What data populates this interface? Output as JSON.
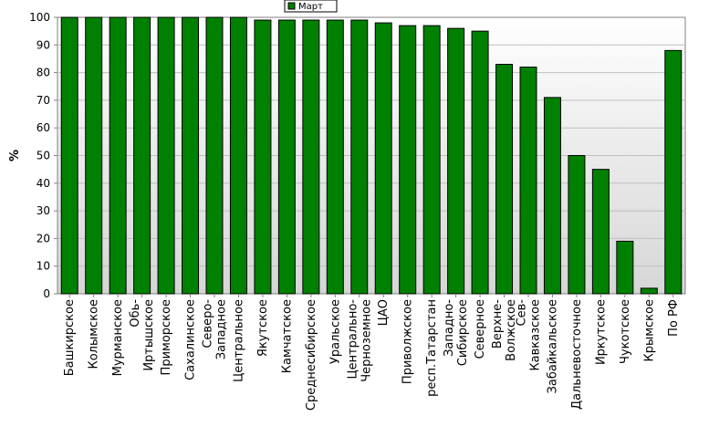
{
  "chart_data": {
    "type": "bar",
    "ylabel": "%",
    "ylim": [
      0,
      100
    ],
    "yticks": [
      0,
      10,
      20,
      30,
      40,
      50,
      60,
      70,
      80,
      90,
      100
    ],
    "grid": "horizontal",
    "legend_position": "top-center",
    "categories": [
      [
        "Башкирское"
      ],
      [
        "Колымское"
      ],
      [
        "Мурманское"
      ],
      [
        "Обь-",
        "Иртышское"
      ],
      [
        "Приморское"
      ],
      [
        "Сахалинское"
      ],
      [
        "Северо-",
        "Западное"
      ],
      [
        "Центральное"
      ],
      [
        "Якутское"
      ],
      [
        "Камчатское"
      ],
      [
        "Среднесибирское"
      ],
      [
        "Уральское"
      ],
      [
        "Центрально-",
        "Черноземное"
      ],
      [
        "ЦАО"
      ],
      [
        "Приволжское"
      ],
      [
        "респ.Татарстан"
      ],
      [
        "Западно-",
        "Сибирское"
      ],
      [
        "Северное"
      ],
      [
        "Верхне-",
        "Волжское"
      ],
      [
        "Сев-",
        "Кавказское"
      ],
      [
        "Забайкальское"
      ],
      [
        "Дальневосточное"
      ],
      [
        "Иркутское"
      ],
      [
        "Чукотское"
      ],
      [
        "Крымское"
      ],
      [
        "По РФ"
      ]
    ],
    "series": [
      {
        "name": "Март",
        "color": "#008000",
        "values": [
          100,
          100,
          100,
          100,
          100,
          100,
          100,
          100,
          99,
          99,
          99,
          99,
          99,
          98,
          97,
          97,
          96,
          95,
          83,
          82,
          71,
          50,
          45,
          19,
          2,
          88
        ]
      }
    ]
  },
  "colors": {
    "bar": "#008000",
    "bar_border": "#000000",
    "plot_bg_top": "#ffffff",
    "plot_bg_bottom": "#d8d8d8",
    "grid": "#c0c0c0"
  }
}
